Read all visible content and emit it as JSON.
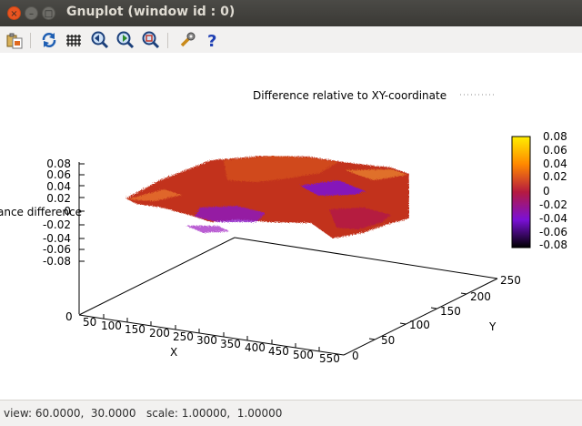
{
  "window": {
    "title": "Gnuplot (window id : 0)"
  },
  "titlebar_buttons": {
    "close": "×",
    "minimize": "–",
    "maximize": "□"
  },
  "toolbar": {
    "items": [
      {
        "name": "copy-to-clipboard-icon"
      },
      {
        "name": "replot-icon"
      },
      {
        "name": "grid-icon"
      },
      {
        "name": "zoom-prev-icon"
      },
      {
        "name": "zoom-next-icon"
      },
      {
        "name": "autoscale-icon"
      },
      {
        "name": "settings-icon"
      },
      {
        "name": "help-icon"
      }
    ]
  },
  "plot": {
    "key_title": "Difference relative to XY-coordinate",
    "z_axis_label": "ance difference",
    "x_axis_label": "X",
    "y_axis_label": "Y",
    "z_ticks": [
      "0.08",
      "0.06",
      "0.04",
      "0.02",
      "0",
      "-0.02",
      "-0.04",
      "-0.06",
      "-0.08"
    ],
    "x_ticks": [
      "0",
      "50",
      "100",
      "150",
      "200",
      "250",
      "300",
      "350",
      "400",
      "450",
      "500",
      "550"
    ],
    "y_ticks": [
      "0",
      "50",
      "100",
      "150",
      "200",
      "250"
    ],
    "colorbox_ticks": [
      "0.08",
      "0.06",
      "0.04",
      "0.02",
      "0",
      "-0.02",
      "-0.04",
      "-0.06",
      "-0.08"
    ],
    "colors": {
      "palette_top": "#ffee00",
      "palette_high": "#ff8800",
      "palette_mid": "#b51a40",
      "palette_low": "#7a10d6",
      "palette_bottom": "#000000",
      "surface_main": "#c2331c"
    }
  },
  "status": {
    "text": "view: 60.0000,  30.0000   scale: 1.00000,  1.00000"
  }
}
